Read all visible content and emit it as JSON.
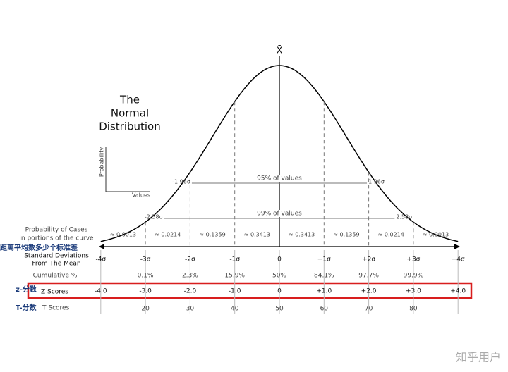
{
  "mean_symbol": "X̄",
  "title": [
    "The",
    "Normal",
    "Distribution"
  ],
  "mini_axes": {
    "y_label": "Probability",
    "x_label": "Values"
  },
  "intervals": [
    {
      "left": "-1.96σ",
      "right": "1.96σ",
      "label": "95% of values"
    },
    {
      "left": "-2.58σ",
      "right": "2.58σ",
      "label": "99% of values"
    }
  ],
  "row_labels": {
    "probability": [
      "Probability of Cases",
      "in portions of the curve"
    ],
    "sd_cn": "距离平均数多少个标准差",
    "sd": [
      "Standard Deviations",
      "From The Mean"
    ],
    "cumulative": "Cumulative %",
    "z_cn": "z-分数",
    "z": "Z Scores",
    "t_cn": "T-分数",
    "t": "T Scores"
  },
  "proportions": [
    "≈ 0.0013",
    "≈ 0.0214",
    "≈ 0.1359",
    "≈ 0.3413",
    "≈ 0.3413",
    "≈ 0.1359",
    "≈ 0.0214",
    "≈ 0.0013"
  ],
  "sigma_labels": [
    "-4σ",
    "-3σ",
    "-2σ",
    "-1σ",
    "0",
    "+1σ",
    "+2σ",
    "+3σ",
    "+4σ"
  ],
  "cumulative": [
    "0.1%",
    "2.3%",
    "15.9%",
    "50%",
    "84.1%",
    "97.7%",
    "99.9%"
  ],
  "z_scores": [
    "-4.0",
    "-3.0",
    "-2.0",
    "-1.0",
    "0",
    "+1.0",
    "+2.0",
    "+3.0",
    "+4.0"
  ],
  "t_scores": [
    "20",
    "30",
    "40",
    "50",
    "60",
    "70",
    "80"
  ],
  "watermark": "知乎用户"
}
